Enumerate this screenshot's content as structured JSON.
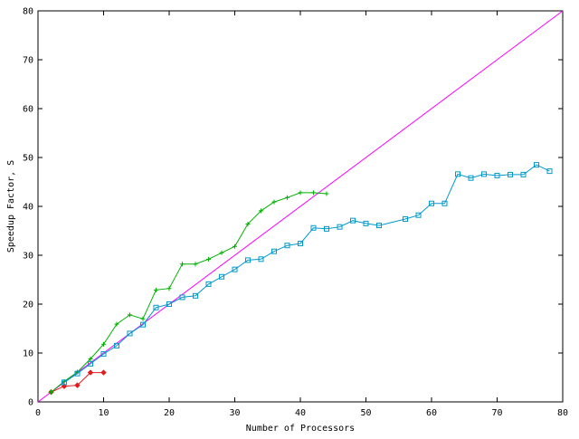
{
  "chart_data": {
    "type": "line",
    "title": "",
    "xlabel": "Number of Processors",
    "ylabel": "Speedup Factor, S",
    "xlim": [
      0,
      80
    ],
    "ylim": [
      0,
      80
    ],
    "xticks": [
      0,
      10,
      20,
      30,
      40,
      50,
      60,
      70,
      80
    ],
    "yticks": [
      0,
      10,
      20,
      30,
      40,
      50,
      60,
      70,
      80
    ],
    "grid": false,
    "legend": "none",
    "series": [
      {
        "color": "#ff00ff",
        "marker": "none",
        "x": [
          0,
          80
        ],
        "y": [
          0,
          80
        ]
      },
      {
        "color": "#e31a1c",
        "marker": "diamond",
        "x": [
          2,
          4,
          6,
          8,
          10
        ],
        "y": [
          2,
          3.2,
          3.4,
          6,
          6
        ]
      },
      {
        "color": "#00b000",
        "marker": "plus",
        "x": [
          2,
          4,
          6,
          8,
          10,
          12,
          14,
          16,
          18,
          20,
          22,
          24,
          26,
          28,
          30,
          32,
          34,
          36,
          38,
          40,
          42,
          44
        ],
        "y": [
          2,
          4.2,
          6.1,
          8.8,
          11.8,
          15.9,
          17.8,
          17,
          22.9,
          23.2,
          28.2,
          28.2,
          29.2,
          30.5,
          31.8,
          36.4,
          39.1,
          40.9,
          41.8,
          42.8,
          42.8,
          42.6
        ]
      },
      {
        "color": "#0099cc",
        "marker": "square",
        "x": [
          4,
          6,
          8,
          10,
          12,
          14,
          16,
          18,
          20,
          22,
          24,
          26,
          28,
          30,
          32,
          34,
          36,
          38,
          40,
          42,
          44,
          46,
          48,
          50,
          52,
          56,
          58,
          60,
          62,
          64,
          66,
          68,
          70,
          72,
          74,
          76,
          78
        ],
        "y": [
          4,
          5.8,
          7.8,
          9.8,
          11.5,
          14,
          15.8,
          19.3,
          20,
          21.4,
          21.7,
          24.1,
          25.6,
          27.1,
          29,
          29.2,
          30.8,
          32,
          32.4,
          35.6,
          35.4,
          35.8,
          37.1,
          36.5,
          36.1,
          37.4,
          38.2,
          40.6,
          40.6,
          46.6,
          45.8,
          46.6,
          46.3,
          46.5,
          46.5,
          48.5,
          47.2
        ]
      }
    ]
  }
}
